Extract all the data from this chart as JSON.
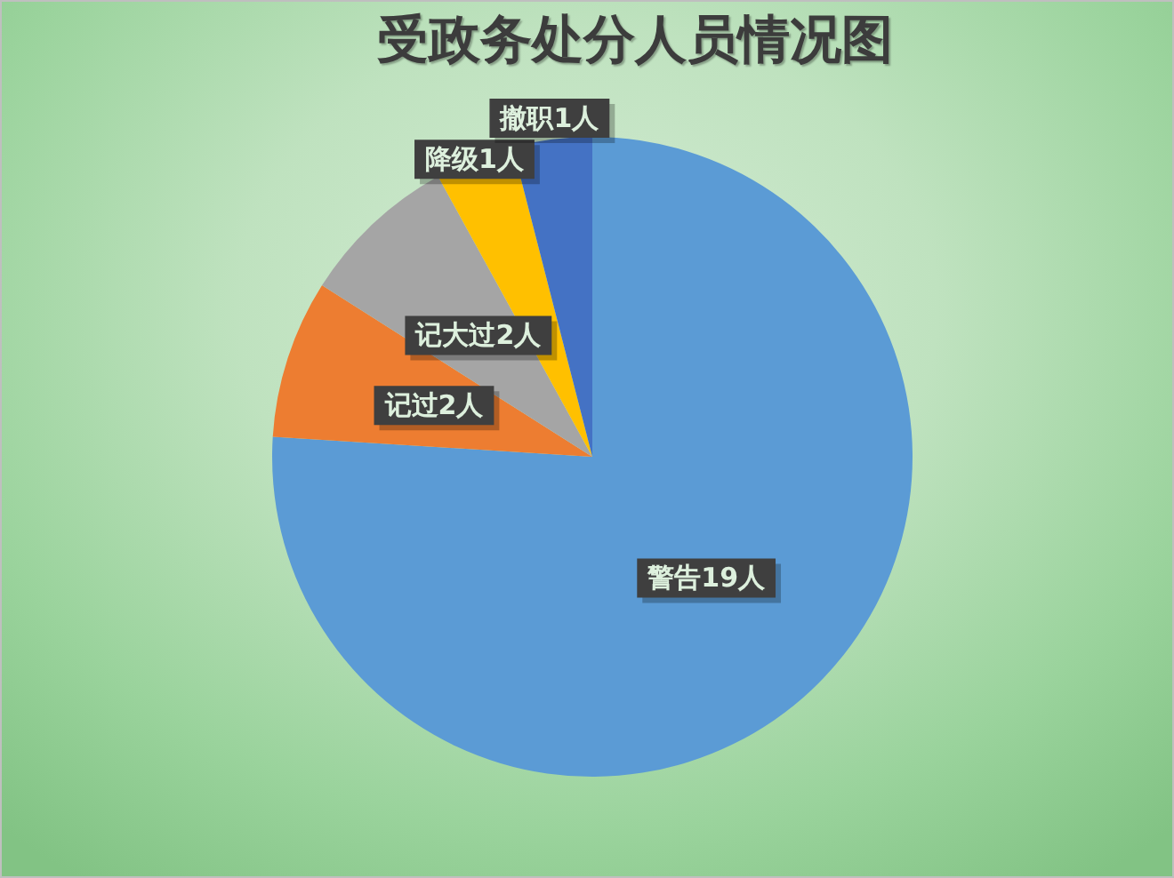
{
  "chart_data": {
    "type": "pie",
    "title": "受政务处分人员情况图",
    "categories": [
      "警告19人",
      "记过2人",
      "记大过2人",
      "降级1人",
      "撤职1人"
    ],
    "values": [
      19,
      2,
      2,
      1,
      1
    ],
    "colors": [
      "#5b9bd5",
      "#ed7d31",
      "#a5a5a5",
      "#ffc000",
      "#4472c4"
    ],
    "legend": false
  }
}
